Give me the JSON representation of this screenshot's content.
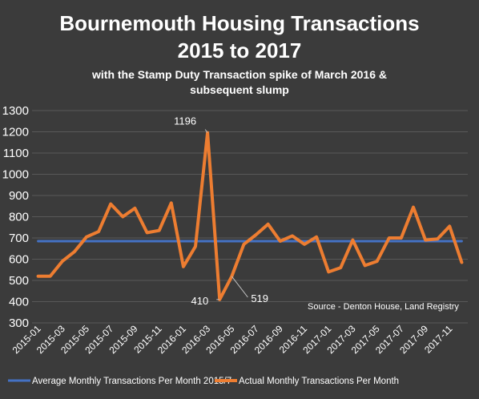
{
  "chart_data": {
    "type": "line",
    "title": "Bournemouth Housing Transactions 2015 to 2017",
    "title_lines": [
      "Bournemouth Housing Transactions",
      "2015 to 2017"
    ],
    "subtitle_lines": [
      "with the Stamp Duty Transaction spike of March 2016 &",
      "subsequent slump"
    ],
    "xlabel": "",
    "ylabel": "",
    "ylim": [
      300,
      1300
    ],
    "yticks": [
      300,
      400,
      500,
      600,
      700,
      800,
      900,
      1000,
      1100,
      1200,
      1300
    ],
    "x": [
      "2015-01",
      "2015-02",
      "2015-03",
      "2015-04",
      "2015-05",
      "2015-06",
      "2015-07",
      "2015-08",
      "2015-09",
      "2015-10",
      "2015-11",
      "2015-12",
      "2016-01",
      "2016-02",
      "2016-03",
      "2016-04",
      "2016-05",
      "2016-06",
      "2016-07",
      "2016-08",
      "2016-09",
      "2016-10",
      "2016-11",
      "2016-12",
      "2017-01",
      "2017-02",
      "2017-03",
      "2017-04",
      "2017-05",
      "2017-06",
      "2017-07",
      "2017-08",
      "2017-09",
      "2017-10",
      "2017-11",
      "2017-12"
    ],
    "xtick_labels": [
      "2015-01",
      "2015-03",
      "2015-05",
      "2015-07",
      "2015-09",
      "2015-11",
      "2016-01",
      "2016-03",
      "2016-05",
      "2016-07",
      "2016-09",
      "2016-11",
      "2017-01",
      "2017-03",
      "2017-05",
      "2017-07",
      "2017-09",
      "2017-11"
    ],
    "series": [
      {
        "name": "Average Monthly Transactions Per Month 2015/7",
        "color": "#4472c4",
        "values": [
          685,
          685,
          685,
          685,
          685,
          685,
          685,
          685,
          685,
          685,
          685,
          685,
          685,
          685,
          685,
          685,
          685,
          685,
          685,
          685,
          685,
          685,
          685,
          685,
          685,
          685,
          685,
          685,
          685,
          685,
          685,
          685,
          685,
          685,
          685,
          685
        ]
      },
      {
        "name": "Actual Monthly Transactions Per Month",
        "color": "#ed7d31",
        "values": [
          520,
          520,
          590,
          635,
          705,
          730,
          860,
          800,
          840,
          725,
          735,
          865,
          565,
          660,
          1196,
          410,
          519,
          670,
          715,
          765,
          685,
          710,
          670,
          705,
          540,
          560,
          690,
          570,
          590,
          700,
          700,
          845,
          690,
          695,
          755,
          585
        ]
      }
    ],
    "annotations": [
      {
        "text": "1196",
        "series": 1,
        "index": 14
      },
      {
        "text": "410",
        "series": 1,
        "index": 15
      },
      {
        "text": "519",
        "series": 1,
        "index": 16
      }
    ],
    "source_note": "Source - Denton House, Land Registry",
    "grid": true,
    "legend_position": "bottom"
  }
}
